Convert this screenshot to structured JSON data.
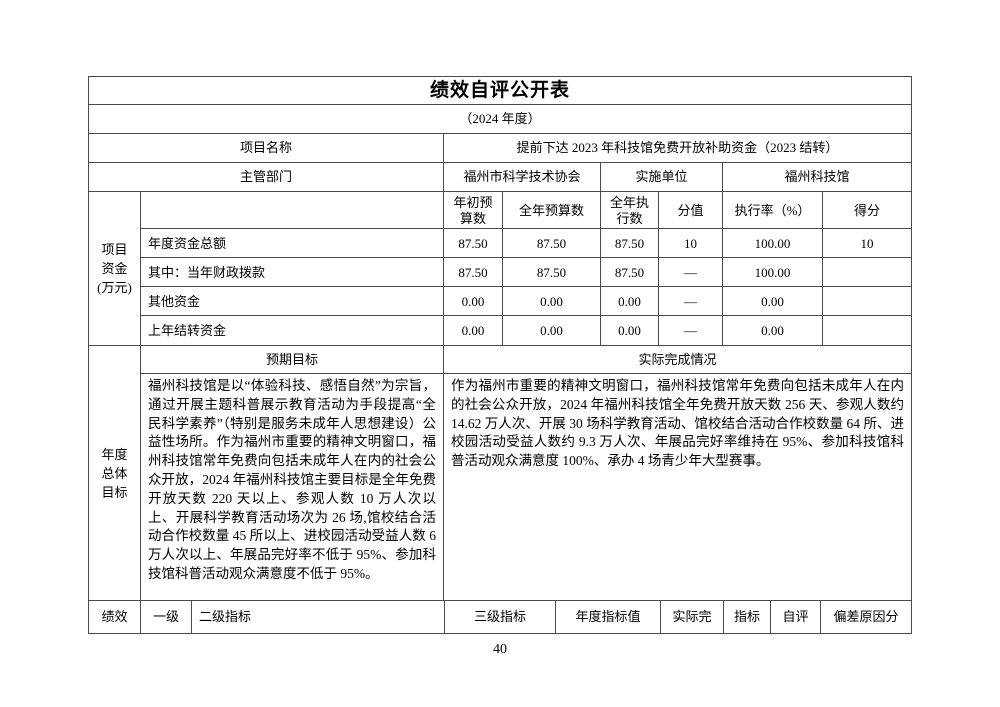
{
  "page": {
    "number": "40"
  },
  "doc": {
    "title": "绩效自评公开表",
    "year": "（2024 年度）",
    "project": {
      "label": "项目名称",
      "value": "提前下达 2023 年科技馆免费开放补助资金（2023 结转）"
    },
    "dept": {
      "label": "主管部门",
      "value": "福州市科学技术协会",
      "unit_label": "实施单位",
      "unit_value": "福州科技馆"
    },
    "funds": {
      "label": "项目\n资金\n(万元)",
      "col_headers": [
        "年初预算数",
        "全年预算数",
        "全年执行数",
        "分值",
        "执行率（%）",
        "得分"
      ],
      "rows": [
        {
          "name": "年度资金总额",
          "v": [
            "87.50",
            "87.50",
            "87.50",
            "10",
            "100.00",
            "10"
          ]
        },
        {
          "name": "其中：当年财政拨款",
          "v": [
            "87.50",
            "87.50",
            "87.50",
            "—",
            "100.00",
            ""
          ]
        },
        {
          "name": "其他资金",
          "v": [
            "0.00",
            "0.00",
            "0.00",
            "—",
            "0.00",
            ""
          ]
        },
        {
          "name": "上年结转资金",
          "v": [
            "0.00",
            "0.00",
            "0.00",
            "—",
            "0.00",
            ""
          ]
        }
      ]
    },
    "goals": {
      "label": "年度\n总体\n目标",
      "expected_header": "预期目标",
      "actual_header": "实际完成情况",
      "expected_text": "福州科技馆是以“体验科技、感悟自然”为宗旨，通过开展主题科普展示教育活动为手段提高“全民科学素养”（特别是服务未成年人思想建设）公益性场所。作为福州市重要的精神文明窗口，福州科技馆常年免费向包括未成年人在内的社会公众开放，2024 年福州科技馆主要目标是全年免费开放天数 220 天以上、参观人数 10 万人次以上、开展科学教育活动场次为 26 场,馆校结合活动合作校数量 45 所以上、进校园活动受益人数 6 万人次以上、年展品完好率不低于 95%、参加科技馆科普活动观众满意度不低于 95%。",
      "actual_text": "作为福州市重要的精神文明窗口，福州科技馆常年免费向包括未成年人在内的社会公众开放，2024 年福州科技馆全年免费开放天数 256 天、参观人数约 14.62 万人次、开展 30 场科学教育活动、馆校结合活动合作校数量 64 所、进校园活动受益人数约 9.3 万人次、年展品完好率维持在 95%、参加科技馆科普活动观众满意度 100%、承办 4 场青少年大型赛事。"
    },
    "perf": {
      "labels": [
        "绩效",
        "一级",
        "二级指标",
        "三级指标",
        "年度指标值",
        "实际完",
        "指标",
        "自评",
        "偏差原因分"
      ]
    }
  }
}
